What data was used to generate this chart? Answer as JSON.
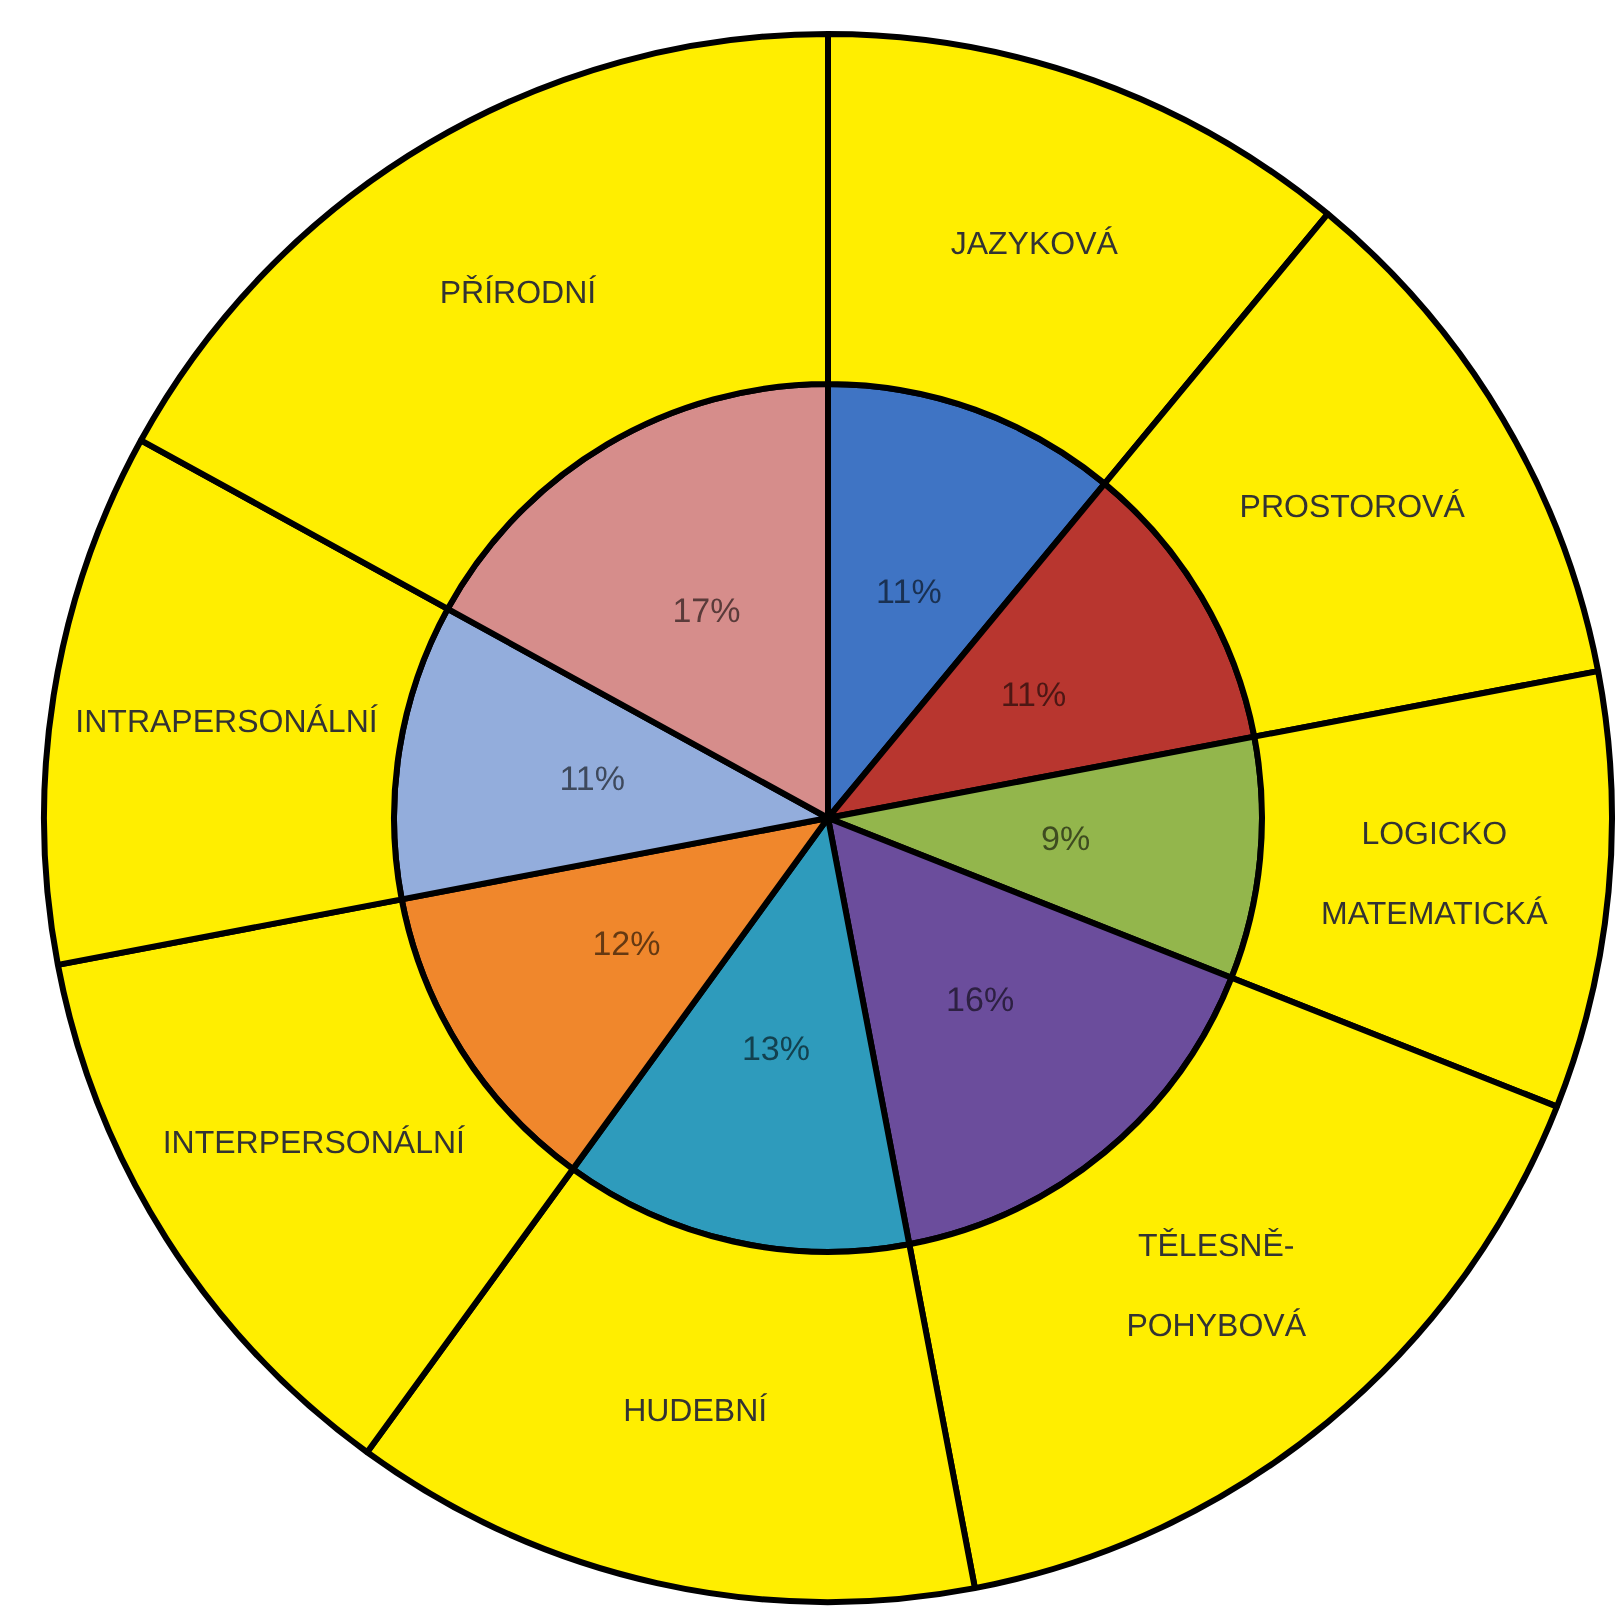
{
  "chart_data": {
    "type": "pie",
    "categories": [
      "JAZYKOVÁ",
      "PROSTOROVÁ",
      "LOGICKO MATEMATICKÁ",
      "TĚLESNĚ-POHYBOVÁ",
      "HUDEBNÍ",
      "INTERPERSONÁLNÍ",
      "INTRAPERSONÁLNÍ",
      "PŘÍRODNÍ"
    ],
    "series": [
      {
        "type": "donut",
        "values": [
          11,
          11,
          9,
          16,
          13,
          12,
          11,
          17
        ],
        "color": "#ffee00"
      },
      {
        "type": "pie",
        "values": [
          11,
          11,
          9,
          16,
          13,
          12,
          11,
          17
        ],
        "colors": [
          "#3f74c4",
          "#b8362f",
          "#93b64c",
          "#6b4d9c",
          "#2e9bbc",
          "#f0872c",
          "#93addc",
          "#d68d8b"
        ],
        "value_labels": [
          "11%",
          "11%",
          "9%",
          "16%",
          "13%",
          "12%",
          "11%",
          "17%"
        ]
      }
    ]
  }
}
